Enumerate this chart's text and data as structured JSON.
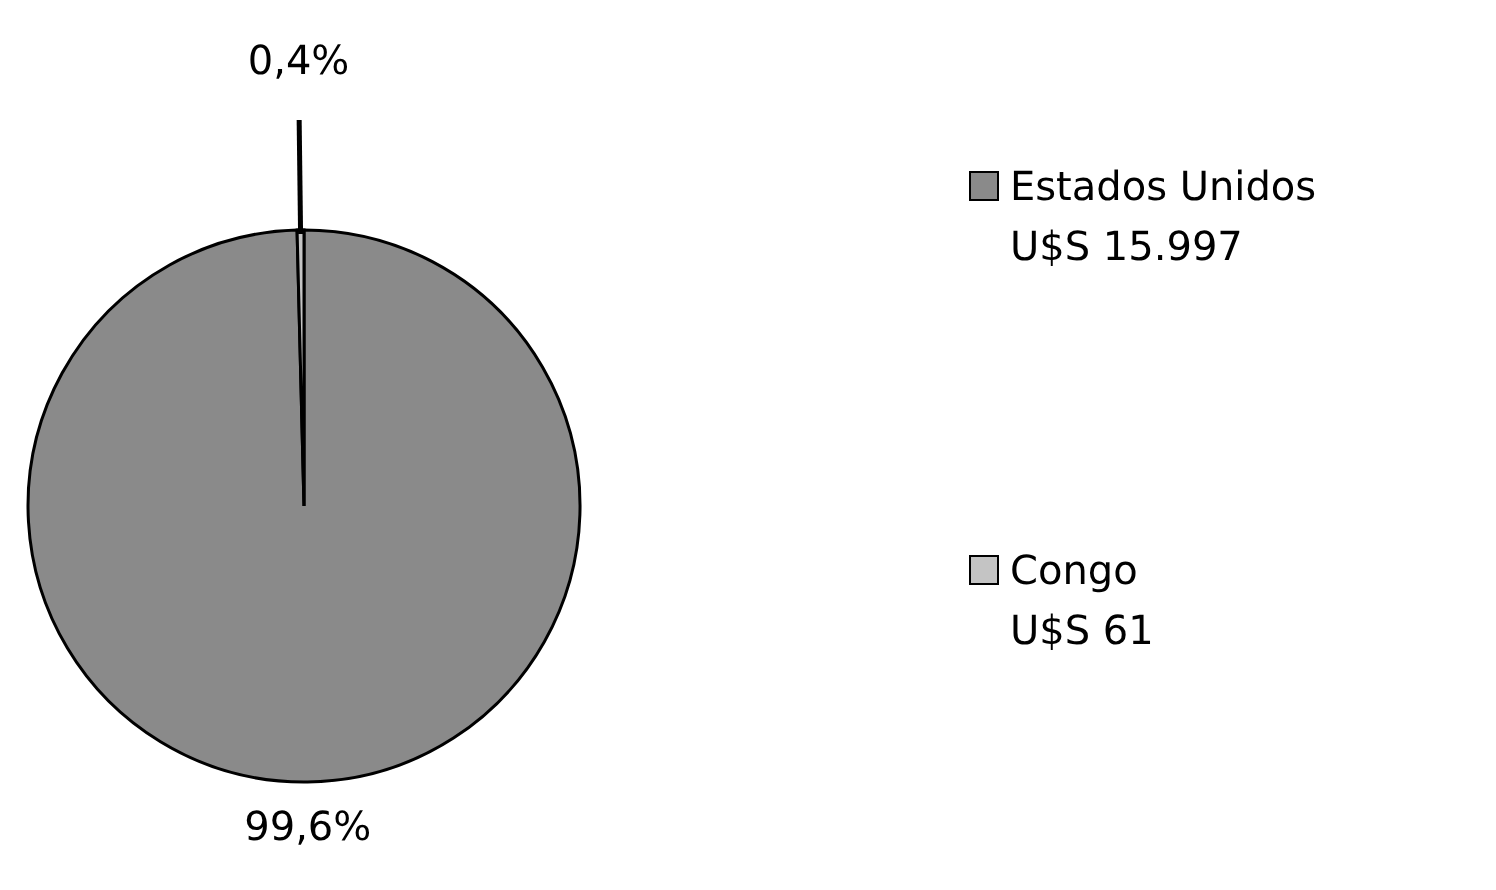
{
  "chart_data": {
    "type": "pie",
    "categories": [
      "Estados Unidos",
      "Congo"
    ],
    "values": [
      99.6,
      0.4
    ],
    "colors": [
      "#8a8a8a",
      "#c4c4c4"
    ],
    "value_labels": [
      "99,6%",
      "0,4%"
    ],
    "annotations": [
      "U$S 15.997",
      "U$S 61"
    ],
    "legend": "right"
  }
}
